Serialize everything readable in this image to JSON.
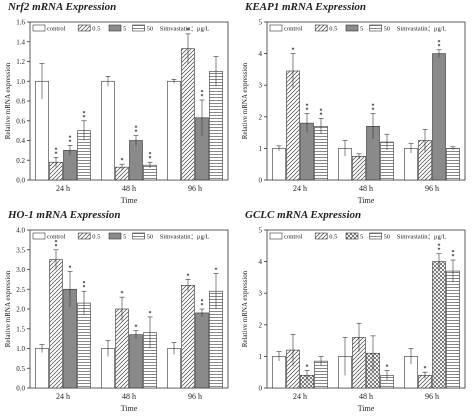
{
  "chart_data": [
    {
      "type": "bar",
      "title": "Nrf2 mRNA Expression",
      "xlabel": "Time",
      "ylabel": "Relative mRNA expression",
      "categories": [
        "24 h",
        "48 h",
        "96 h"
      ],
      "legend_suffix": "Simvastatin：μg/L",
      "ylim": [
        0,
        1.6
      ],
      "yticks": [
        "0.0",
        "0.2",
        "0.4",
        "0.6",
        "0.8",
        "1.0",
        "1.2",
        "1.4",
        "1.6"
      ],
      "series": [
        {
          "name": "control",
          "values": [
            1.0,
            1.0,
            1.0
          ],
          "errors": [
            0.18,
            0.05,
            0.02
          ],
          "sig": [
            "",
            "",
            ""
          ]
        },
        {
          "name": "0.5",
          "values": [
            0.18,
            0.13,
            1.33
          ],
          "errors": [
            0.05,
            0.03,
            0.15
          ],
          "sig": [
            "* *",
            "*",
            "*"
          ]
        },
        {
          "name": "5",
          "values": [
            0.3,
            0.4,
            0.63
          ],
          "errors": [
            0.05,
            0.05,
            0.18
          ],
          "sig": [
            "* *",
            "* *",
            "* *"
          ]
        },
        {
          "name": "50",
          "values": [
            0.5,
            0.15,
            1.1
          ],
          "errors": [
            0.1,
            0.03,
            0.15
          ],
          "sig": [
            "* *",
            "* *",
            ""
          ]
        }
      ]
    },
    {
      "type": "bar",
      "title": "KEAP1 mRNA Expression",
      "xlabel": "Time",
      "ylabel": "Relative mRNA expression",
      "categories": [
        "24 h",
        "48 h",
        "96 h"
      ],
      "legend_suffix": "Simvastatin：μg/L",
      "ylim": [
        0,
        5
      ],
      "yticks": [
        "0",
        "1",
        "2",
        "3",
        "4",
        "5"
      ],
      "series": [
        {
          "name": "control",
          "values": [
            1.0,
            1.0,
            1.0
          ],
          "errors": [
            0.08,
            0.25,
            0.15
          ],
          "sig": [
            "",
            "",
            ""
          ]
        },
        {
          "name": "0.5",
          "values": [
            3.45,
            0.75,
            1.25
          ],
          "errors": [
            0.55,
            0.08,
            0.35
          ],
          "sig": [
            "*",
            "",
            ""
          ]
        },
        {
          "name": "5",
          "values": [
            1.8,
            1.7,
            4.0
          ],
          "errors": [
            0.3,
            0.4,
            0.12
          ],
          "sig": [
            "* *",
            "* *",
            "* *"
          ]
        },
        {
          "name": "50",
          "values": [
            1.7,
            1.2,
            1.0
          ],
          "errors": [
            0.25,
            0.25,
            0.05
          ],
          "sig": [
            "* *",
            "",
            ""
          ]
        }
      ]
    },
    {
      "type": "bar",
      "title": "HO-1 mRNA Expression",
      "xlabel": "Time",
      "ylabel": "Relative mRNA expression",
      "categories": [
        "24 h",
        "48 h",
        "96 h"
      ],
      "legend_suffix": "Simvastatin：μg/L",
      "ylim": [
        0,
        4.0
      ],
      "yticks": [
        "0.0",
        "0.5",
        "1.0",
        "1.5",
        "2.0",
        "2.5",
        "3.0",
        "3.5",
        "4.0"
      ],
      "series": [
        {
          "name": "control",
          "values": [
            1.0,
            1.0,
            1.0
          ],
          "errors": [
            0.1,
            0.2,
            0.15
          ],
          "sig": [
            "",
            "",
            ""
          ]
        },
        {
          "name": "0.5",
          "values": [
            3.25,
            2.0,
            2.6
          ],
          "errors": [
            0.25,
            0.3,
            0.15
          ],
          "sig": [
            "* *",
            "*",
            "*"
          ]
        },
        {
          "name": "5",
          "values": [
            2.5,
            1.35,
            1.9
          ],
          "errors": [
            0.45,
            0.1,
            0.1
          ],
          "sig": [
            "*",
            "*",
            "* *"
          ]
        },
        {
          "name": "50",
          "values": [
            2.15,
            1.4,
            2.45
          ],
          "errors": [
            0.3,
            0.4,
            0.45
          ],
          "sig": [
            "* *",
            "*",
            "*"
          ]
        }
      ]
    },
    {
      "type": "bar",
      "title": "GCLC mRNA Expression",
      "xlabel": "Time",
      "ylabel": "Relative mRNA expression",
      "categories": [
        "24 h",
        "48 h",
        "96 h"
      ],
      "legend_suffix": "Simvastatin：μg/L",
      "ylim": [
        0,
        5
      ],
      "yticks": [
        "0",
        "1",
        "2",
        "3",
        "4",
        "5"
      ],
      "series": [
        {
          "name": "control",
          "values": [
            1.0,
            1.0,
            1.0
          ],
          "errors": [
            0.15,
            0.6,
            0.25
          ],
          "sig": [
            "",
            "",
            ""
          ]
        },
        {
          "name": "0.5",
          "values": [
            1.2,
            1.6,
            0.4
          ],
          "errors": [
            0.5,
            0.45,
            0.1
          ],
          "sig": [
            "",
            "",
            "*"
          ]
        },
        {
          "name": "5",
          "values": [
            0.4,
            1.1,
            4.0
          ],
          "errors": [
            0.15,
            0.55,
            0.25
          ],
          "sig": [
            "*",
            "",
            "* *"
          ]
        },
        {
          "name": "50",
          "values": [
            0.85,
            0.4,
            3.7
          ],
          "errors": [
            0.15,
            0.15,
            0.35
          ],
          "sig": [
            "",
            "*",
            "* *"
          ]
        }
      ]
    }
  ]
}
